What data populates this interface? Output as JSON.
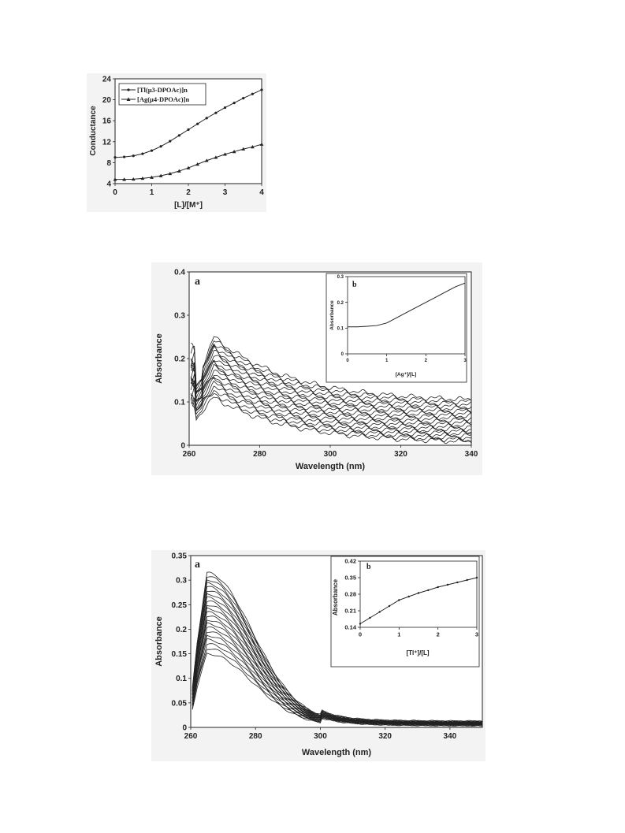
{
  "figures": {
    "conductance": {
      "ylabel": "Conductance",
      "xlabel": "[L]/[M⁺]",
      "legend": [
        "[Tl(μ3-DPOAc)]n",
        "[Ag(μ4-DPOAc)]n"
      ]
    },
    "ag_uv": {
      "panel_a": "a",
      "panel_b": "b",
      "ylabel": "Absorbance",
      "xlabel": "Wavelength (nm)",
      "inset_ylabel": "Absorbance",
      "inset_xlabel": "[Ag⁺]/[L]"
    },
    "tl_uv": {
      "panel_a": "a",
      "panel_b": "b",
      "ylabel": "Absorbance",
      "xlabel": "Wavelength (nm)",
      "inset_ylabel": "Absorbance",
      "inset_xlabel": "[Tl⁺]/[L]"
    }
  },
  "chart_data": [
    {
      "type": "line",
      "xlim": [
        0,
        4
      ],
      "ylim": [
        4,
        24
      ],
      "xticks": [
        0,
        1,
        2,
        3,
        4
      ],
      "yticks": [
        4,
        8,
        12,
        16,
        20,
        24
      ],
      "x": [
        0,
        0.25,
        0.5,
        0.75,
        1,
        1.25,
        1.5,
        1.75,
        2,
        2.25,
        2.5,
        2.75,
        3,
        3.25,
        3.5,
        3.75,
        4
      ],
      "series": [
        {
          "name": "[Tl(μ3-DPOAc)]n",
          "marker": "circle",
          "values": [
            9,
            9.1,
            9.3,
            9.7,
            10.3,
            11.1,
            12.1,
            13.2,
            14.3,
            15.4,
            16.5,
            17.5,
            18.5,
            19.4,
            20.3,
            21.1,
            21.9
          ]
        },
        {
          "name": "[Ag(μ4-DPOAc)]n",
          "marker": "triangle",
          "values": [
            4.8,
            4.8,
            4.85,
            5.0,
            5.2,
            5.5,
            5.9,
            6.4,
            7.0,
            7.7,
            8.4,
            9.0,
            9.6,
            10.1,
            10.6,
            11.0,
            11.5
          ]
        }
      ],
      "legend_position": "top-left"
    },
    {
      "type": "line",
      "xlim": [
        260,
        340
      ],
      "ylim": [
        0,
        0.4
      ],
      "xticks": [
        260,
        280,
        300,
        320,
        340
      ],
      "yticks": [
        0,
        0.1,
        0.2,
        0.3,
        0.4
      ],
      "description": "family of UV-Vis spectra",
      "spectra_count": 20,
      "peak_wavelength": 267,
      "peak_absorbance_range": [
        0.11,
        0.25
      ],
      "end_absorbance_range": [
        0.005,
        0.1
      ],
      "inset": {
        "type": "line",
        "xlim": [
          0,
          3
        ],
        "ylim": [
          0,
          0.3
        ],
        "xticks": [
          0,
          1,
          2,
          3
        ],
        "yticks": [
          0,
          0.1,
          0.2,
          0.3
        ],
        "x": [
          0,
          0.25,
          0.5,
          0.75,
          1,
          1.25,
          1.5,
          1.75,
          2,
          2.25,
          2.5,
          2.75,
          3
        ],
        "values": [
          0.105,
          0.105,
          0.107,
          0.11,
          0.12,
          0.14,
          0.16,
          0.18,
          0.2,
          0.22,
          0.24,
          0.26,
          0.275
        ]
      }
    },
    {
      "type": "line",
      "xlim": [
        260,
        350
      ],
      "ylim": [
        0,
        0.35
      ],
      "xticks": [
        260,
        280,
        300,
        320,
        340
      ],
      "yticks": [
        0,
        0.05,
        0.1,
        0.15,
        0.2,
        0.25,
        0.3,
        0.35
      ],
      "description": "family of UV-Vis spectra",
      "spectra_count": 22,
      "peak_wavelength": 265,
      "peak_absorbance_range": [
        0.15,
        0.315
      ],
      "end_absorbance_range": [
        0.004,
        0.012
      ],
      "inset": {
        "type": "line",
        "xlim": [
          0,
          3
        ],
        "ylim": [
          0.14,
          0.42
        ],
        "xticks": [
          0,
          1,
          2,
          3
        ],
        "yticks": [
          0.14,
          0.21,
          0.28,
          0.35,
          0.42
        ],
        "x": [
          0,
          0.25,
          0.5,
          0.75,
          1,
          1.25,
          1.5,
          1.75,
          2,
          2.25,
          2.5,
          2.75,
          3
        ],
        "values": [
          0.155,
          0.18,
          0.205,
          0.23,
          0.255,
          0.27,
          0.285,
          0.297,
          0.31,
          0.32,
          0.33,
          0.34,
          0.35
        ]
      }
    }
  ]
}
